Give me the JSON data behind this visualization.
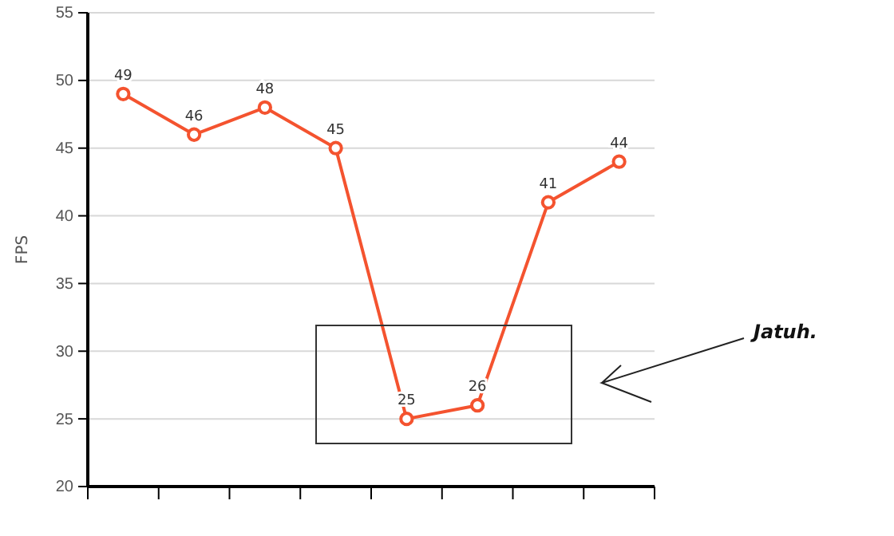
{
  "chart_data": {
    "type": "line",
    "ylabel": "FPS",
    "categories": [
      null,
      null,
      null,
      null,
      null,
      null,
      null,
      null
    ],
    "series": [
      {
        "color": "#f4532f",
        "values": [
          49,
          46,
          48,
          45,
          25,
          26,
          41,
          44
        ]
      }
    ],
    "ylim": [
      20,
      55
    ],
    "yticks": [
      20,
      25,
      30,
      35,
      40,
      45,
      50,
      55
    ],
    "grid": "y",
    "marker": "circle",
    "line_style": "solid",
    "data_labels": true,
    "annotations": [
      "Jatuh."
    ]
  }
}
